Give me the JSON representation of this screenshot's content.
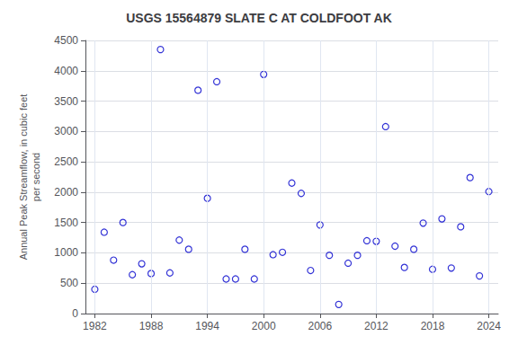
{
  "chart_data": {
    "type": "scatter",
    "title": "USGS 15564879 SLATE C AT COLDFOOT AK",
    "ylabel": "Annual Peak Streamflow, in cubic feet\nper second",
    "x": [
      1982,
      1983,
      1984,
      1985,
      1986,
      1987,
      1988,
      1989,
      1990,
      1991,
      1992,
      1993,
      1994,
      1995,
      1996,
      1997,
      1998,
      1999,
      2000,
      2001,
      2002,
      2003,
      2004,
      2005,
      2006,
      2007,
      2008,
      2009,
      2010,
      2011,
      2012,
      2013,
      2014,
      2015,
      2016,
      2017,
      2018,
      2019,
      2020,
      2021,
      2022,
      2023,
      2024
    ],
    "values": [
      400,
      1340,
      880,
      1500,
      640,
      820,
      660,
      4350,
      670,
      1210,
      1060,
      3680,
      1900,
      3820,
      570,
      570,
      1060,
      570,
      3940,
      970,
      1010,
      2150,
      1980,
      710,
      1460,
      960,
      150,
      830,
      960,
      1200,
      1190,
      3080,
      1110,
      760,
      1060,
      1490,
      730,
      1560,
      750,
      1430,
      2240,
      620,
      2010
    ],
    "color": "#0000cc",
    "marker": "circle",
    "xlim": [
      1981,
      2025
    ],
    "ylim": [
      0,
      4500
    ],
    "xticks": [
      1982,
      1988,
      1994,
      2000,
      2006,
      2012,
      2018,
      2024
    ],
    "yticks": [
      0,
      500,
      1000,
      1500,
      2000,
      2500,
      3000,
      3500,
      4000,
      4500
    ],
    "grid": true
  }
}
